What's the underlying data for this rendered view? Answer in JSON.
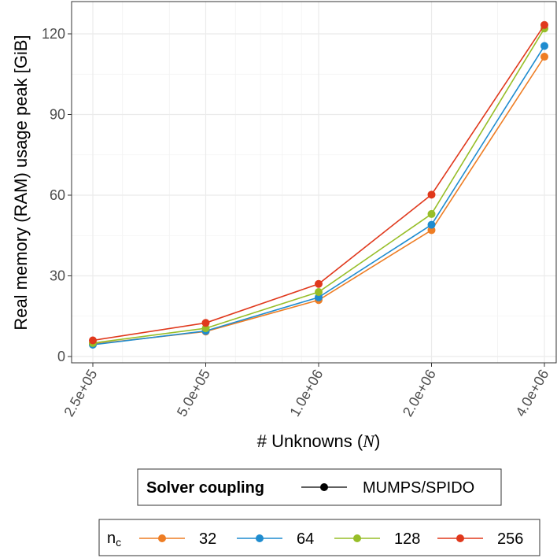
{
  "chart_data": {
    "type": "line",
    "xlabel": "# Unknowns",
    "xlabel_symbol": "N",
    "ylabel": "Real memory (RAM) usage peak [GiB]",
    "x": [
      250000,
      500000,
      1000000,
      2000000,
      4000000
    ],
    "x_tick_labels": [
      "2.5e+05",
      "5.0e+05",
      "1.0e+06",
      "2.0e+06",
      "4.0e+06"
    ],
    "y_ticks": [
      0,
      30,
      60,
      90,
      120
    ],
    "y_tick_labels": [
      "0",
      "30",
      "60",
      "90",
      "120"
    ],
    "xlim": [
      250000,
      4000000
    ],
    "ylim": [
      0,
      126
    ],
    "grid": true,
    "legend_placement": "bottom",
    "series": [
      {
        "name": "32",
        "color": "#EE7D24",
        "values": [
          4.6,
          9.3,
          21.0,
          47.0,
          111.5
        ]
      },
      {
        "name": "64",
        "color": "#1F8CCF",
        "values": [
          4.4,
          9.5,
          22.0,
          49.0,
          115.5
        ]
      },
      {
        "name": "128",
        "color": "#97BE28",
        "values": [
          5.0,
          10.5,
          24.0,
          53.0,
          122.0
        ]
      },
      {
        "name": "256",
        "color": "#E0381C",
        "values": [
          6.0,
          12.5,
          27.0,
          60.2,
          123.3
        ]
      }
    ],
    "legend_coupling": {
      "title": "Solver coupling",
      "entry": "MUMPS/SPIDO"
    },
    "legend_nc": {
      "title_main": "n",
      "title_sub": "c",
      "entries": [
        "32",
        "64",
        "128",
        "256"
      ]
    }
  }
}
